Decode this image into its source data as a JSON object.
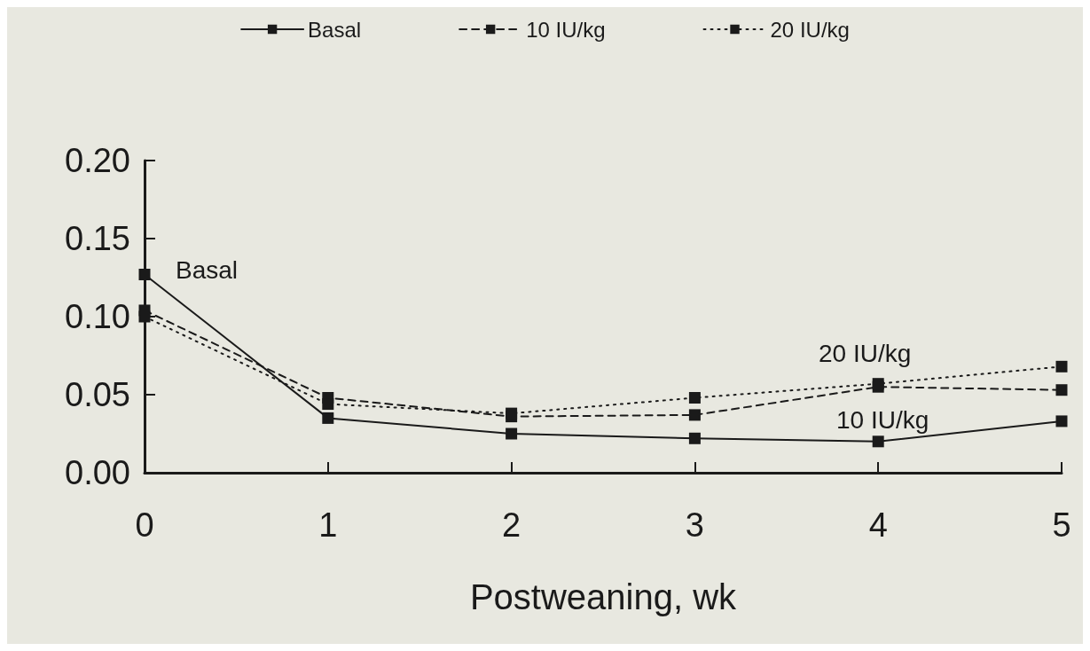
{
  "chart_data": {
    "type": "line",
    "xlabel": "Postweaning, wk",
    "x": [
      0,
      1,
      2,
      3,
      4,
      5
    ],
    "series": [
      {
        "name": "Basal",
        "color": "#1a1a1a",
        "line_style": "solid",
        "values": [
          0.127,
          0.035,
          0.025,
          0.022,
          0.02,
          0.033
        ]
      },
      {
        "name": "10 IU/kg",
        "color": "#1a1a1a",
        "line_style": "dashed",
        "values": [
          0.104,
          0.048,
          0.036,
          0.037,
          0.055,
          0.053
        ]
      },
      {
        "name": "20 IU/kg",
        "color": "#1a1a1a",
        "line_style": "dotted",
        "values": [
          0.1,
          0.044,
          0.038,
          0.048,
          0.057,
          0.068
        ]
      }
    ],
    "annotations": [
      "Basal",
      "20 IU/kg",
      "10 IU/kg"
    ],
    "xlim": [
      0,
      5
    ],
    "xticks": [
      0,
      1,
      2,
      3,
      4,
      5
    ],
    "ylim": [
      0,
      0.2
    ],
    "yticks": [
      {
        "value": 0,
        "label": "0.00"
      },
      0.05,
      {
        "value": 0.1,
        "label": "0.10"
      },
      0.15,
      {
        "value": 0.2,
        "label": "0.20"
      }
    ],
    "marker": "square",
    "grid": false,
    "legend": "top"
  }
}
